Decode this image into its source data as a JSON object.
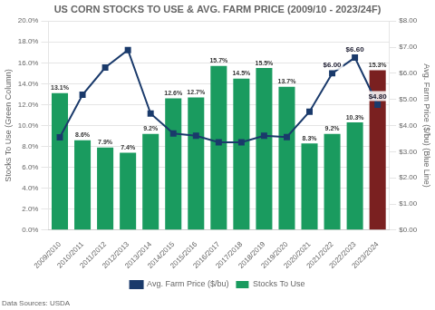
{
  "chart_data": {
    "type": "bar",
    "title": "US CORN STOCKS TO USE & AVG. FARM PRICE (2009/10 - 2023/24F)",
    "source": "Data Sources: USDA",
    "categories": [
      "2009/2010",
      "2010/2011",
      "2011/2012",
      "2012/2013",
      "2013/2014",
      "2014/2015",
      "2015/2016",
      "2016/2017",
      "2017/2018",
      "2018/2019",
      "2019/2020",
      "2020/2021",
      "2021/2022",
      "2022/2023",
      "2023/2024"
    ],
    "series": [
      {
        "name": "Stocks To Use",
        "type": "bar",
        "colors": [
          "#1a9b5f",
          "#1a9b5f",
          "#1a9b5f",
          "#1a9b5f",
          "#1a9b5f",
          "#1a9b5f",
          "#1a9b5f",
          "#1a9b5f",
          "#1a9b5f",
          "#1a9b5f",
          "#1a9b5f",
          "#1a9b5f",
          "#1a9b5f",
          "#1a9b5f",
          "#7a2020"
        ],
        "values": [
          13.1,
          8.6,
          7.9,
          7.4,
          9.2,
          12.6,
          12.7,
          15.7,
          14.5,
          15.5,
          13.7,
          8.3,
          9.2,
          10.3,
          15.3
        ],
        "value_labels": [
          "13.1%",
          "8.6%",
          "7.9%",
          "7.4%",
          "9.2%",
          "12.6%",
          "12.7%",
          "15.7%",
          "14.5%",
          "15.5%",
          "13.7%",
          "8.3%",
          "9.2%",
          "10.3%",
          "15.3%"
        ]
      },
      {
        "name": "Avg. Farm Price ($/bu)",
        "type": "line",
        "axis": "y2",
        "color": "#1a3a6b",
        "marker": "square",
        "line_style": "solid",
        "values": [
          3.55,
          5.18,
          6.22,
          6.89,
          4.46,
          3.7,
          3.61,
          3.36,
          3.36,
          3.61,
          3.56,
          4.53,
          6.0,
          6.6,
          4.8
        ],
        "value_labels": [
          null,
          null,
          null,
          null,
          null,
          null,
          null,
          null,
          null,
          null,
          null,
          null,
          "$6.00",
          "$6.60",
          "$4.80"
        ]
      }
    ],
    "ylabel": "Stocks To Use (Green Column)",
    "y2label": "Avg. Farm Price ($/bu) (Blue Line)",
    "ylim": [
      0.0,
      20.0
    ],
    "yticks": [
      {
        "value": 0.0,
        "label": "0.0%"
      },
      {
        "value": 2.0,
        "label": "2.0%"
      },
      {
        "value": 4.0,
        "label": "4.0%"
      },
      {
        "value": 6.0,
        "label": "6.0%"
      },
      {
        "value": 8.0,
        "label": "8.0%"
      },
      {
        "value": 10.0,
        "label": "10.0%"
      },
      {
        "value": 12.0,
        "label": "12.0%"
      },
      {
        "value": 14.0,
        "label": "14.0%"
      },
      {
        "value": 16.0,
        "label": "16.0%"
      },
      {
        "value": 18.0,
        "label": "18.0%"
      },
      {
        "value": 20.0,
        "label": "20.0%"
      }
    ],
    "y2lim": [
      0.0,
      8.0
    ],
    "y2ticks": [
      {
        "value": 0.0,
        "label": "$0.00"
      },
      {
        "value": 1.0,
        "label": "$1.00"
      },
      {
        "value": 2.0,
        "label": "$2.00"
      },
      {
        "value": 3.0,
        "label": "$3.00"
      },
      {
        "value": 4.0,
        "label": "$4.00"
      },
      {
        "value": 5.0,
        "label": "$5.00"
      },
      {
        "value": 6.0,
        "label": "$6.00"
      },
      {
        "value": 7.0,
        "label": "$7.00"
      },
      {
        "value": 8.0,
        "label": "$8.00"
      }
    ],
    "grid": true,
    "legend": "bottom",
    "data_labels": true
  }
}
